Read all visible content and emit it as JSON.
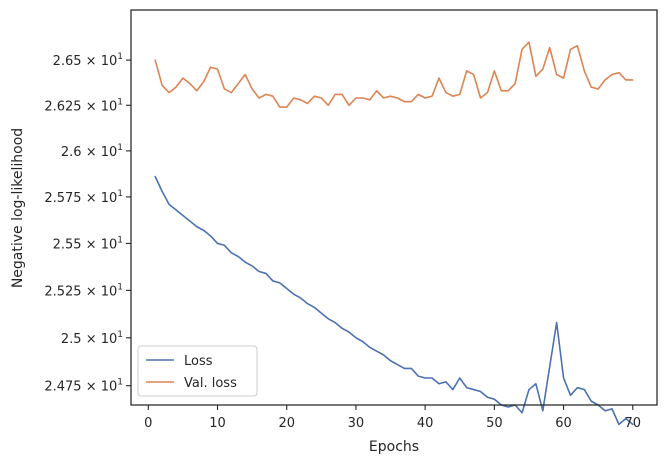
{
  "chart_data": {
    "type": "line",
    "title": "",
    "xlabel": "Epochs",
    "ylabel": "Negative log-likelihood",
    "xlim": [
      -2.5,
      73.5
    ],
    "ylim": [
      24.65,
      26.78
    ],
    "y_scale": "log",
    "grid": false,
    "legend_position": "lower-left",
    "x_ticks": [
      {
        "value": 0,
        "label": "0"
      },
      {
        "value": 10,
        "label": "10"
      },
      {
        "value": 20,
        "label": "20"
      },
      {
        "value": 30,
        "label": "30"
      },
      {
        "value": 40,
        "label": "40"
      },
      {
        "value": 50,
        "label": "50"
      },
      {
        "value": 60,
        "label": "60"
      },
      {
        "value": 70,
        "label": "70"
      }
    ],
    "y_ticks": [
      {
        "value": 24.75,
        "mantissa": "2.475",
        "exponent": "1"
      },
      {
        "value": 25.0,
        "mantissa": "2.5",
        "exponent": "1"
      },
      {
        "value": 25.25,
        "mantissa": "2.525",
        "exponent": "1"
      },
      {
        "value": 25.5,
        "mantissa": "2.55",
        "exponent": "1"
      },
      {
        "value": 25.75,
        "mantissa": "2.575",
        "exponent": "1"
      },
      {
        "value": 26.0,
        "mantissa": "2.6",
        "exponent": "1"
      },
      {
        "value": 26.25,
        "mantissa": "2.625",
        "exponent": "1"
      },
      {
        "value": 26.5,
        "mantissa": "2.65",
        "exponent": "1"
      }
    ],
    "series": [
      {
        "name": "Loss",
        "color": "#4c72b0",
        "x": [
          1,
          2,
          3,
          4,
          5,
          6,
          7,
          8,
          9,
          10,
          11,
          12,
          13,
          14,
          15,
          16,
          17,
          18,
          19,
          20,
          21,
          22,
          23,
          24,
          25,
          26,
          27,
          28,
          29,
          30,
          31,
          32,
          33,
          34,
          35,
          36,
          37,
          38,
          39,
          40,
          41,
          42,
          43,
          44,
          45,
          46,
          47,
          48,
          49,
          50,
          51,
          52,
          53,
          54,
          55,
          56,
          57,
          58,
          59,
          60,
          61,
          62,
          63,
          64,
          65,
          66,
          67,
          68,
          69,
          70
        ],
        "values": [
          25.86,
          25.78,
          25.71,
          25.68,
          25.65,
          25.62,
          25.59,
          25.57,
          25.54,
          25.5,
          25.49,
          25.45,
          25.43,
          25.4,
          25.38,
          25.35,
          25.34,
          25.3,
          25.29,
          25.26,
          25.23,
          25.21,
          25.18,
          25.16,
          25.13,
          25.1,
          25.08,
          25.05,
          25.03,
          25.0,
          24.98,
          24.95,
          24.93,
          24.91,
          24.88,
          24.86,
          24.84,
          24.84,
          24.8,
          24.79,
          24.79,
          24.76,
          24.77,
          24.73,
          24.79,
          24.74,
          24.73,
          24.72,
          24.69,
          24.68,
          24.65,
          24.64,
          24.65,
          24.61,
          24.73,
          24.76,
          24.62,
          24.85,
          25.08,
          24.79,
          24.7,
          24.74,
          24.73,
          24.67,
          24.65,
          24.62,
          24.63,
          24.55,
          24.58,
          24.55
        ]
      },
      {
        "name": "Val. loss",
        "color": "#dd8452",
        "x": [
          1,
          2,
          3,
          4,
          5,
          6,
          7,
          8,
          9,
          10,
          11,
          12,
          13,
          14,
          15,
          16,
          17,
          18,
          19,
          20,
          21,
          22,
          23,
          24,
          25,
          26,
          27,
          28,
          29,
          30,
          31,
          32,
          33,
          34,
          35,
          36,
          37,
          38,
          39,
          40,
          41,
          42,
          43,
          44,
          45,
          46,
          47,
          48,
          49,
          50,
          51,
          52,
          53,
          54,
          55,
          56,
          57,
          58,
          59,
          60,
          61,
          62,
          63,
          64,
          65,
          66,
          67,
          68,
          69,
          70
        ],
        "values": [
          26.5,
          26.36,
          26.32,
          26.35,
          26.4,
          26.37,
          26.33,
          26.38,
          26.46,
          26.45,
          26.34,
          26.32,
          26.37,
          26.42,
          26.34,
          26.29,
          26.31,
          26.3,
          26.24,
          26.24,
          26.29,
          26.28,
          26.26,
          26.3,
          26.29,
          26.25,
          26.31,
          26.31,
          26.25,
          26.29,
          26.29,
          26.28,
          26.33,
          26.29,
          26.3,
          26.29,
          26.27,
          26.27,
          26.31,
          26.29,
          26.3,
          26.4,
          26.32,
          26.3,
          26.31,
          26.44,
          26.42,
          26.29,
          26.32,
          26.44,
          26.33,
          26.33,
          26.37,
          26.56,
          26.6,
          26.41,
          26.45,
          26.57,
          26.42,
          26.4,
          26.56,
          26.58,
          26.44,
          26.35,
          26.34,
          26.39,
          26.42,
          26.43,
          26.39,
          26.39
        ]
      }
    ]
  }
}
